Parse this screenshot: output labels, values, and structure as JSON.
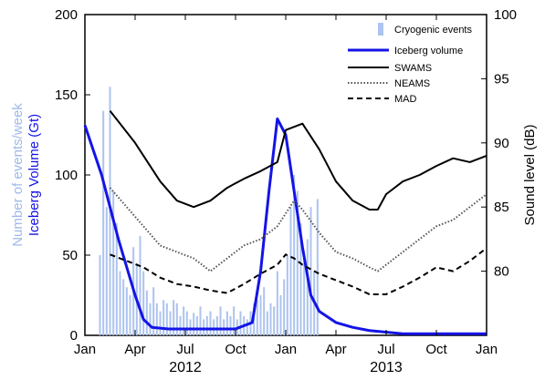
{
  "chart_data": {
    "type": "bar+line",
    "x_tick_labels": [
      "Jan",
      "Apr",
      "Jul",
      "Oct",
      "Jan",
      "Apr",
      "Jul",
      "Oct",
      "Jan"
    ],
    "x_tick_months": [
      0,
      3,
      6,
      9,
      12,
      15,
      18,
      21,
      24
    ],
    "years": [
      {
        "label": "2012",
        "month": 6
      },
      {
        "label": "2013",
        "month": 18
      }
    ],
    "xlim": [
      0,
      24
    ],
    "left_axis": {
      "ylim": [
        0,
        200
      ],
      "ticks": [
        0,
        50,
        100,
        150,
        200
      ],
      "label_line1": "Number of events/week",
      "label_line2": "Iceberg Volume (Gt)",
      "label_line1_color": "#9fb9ea",
      "label_line2_color": "#1414e6"
    },
    "right_axis": {
      "ylim": [
        75,
        100
      ],
      "ticks": [
        80,
        85,
        90,
        95,
        100
      ],
      "label": "Sound level (dB)"
    },
    "series": [
      {
        "name": "Cryogenic events",
        "axis": "left",
        "kind": "bar",
        "color": "#adc4ef",
        "x": [
          0.9,
          1.1,
          1.3,
          1.5,
          1.7,
          1.9,
          2.1,
          2.3,
          2.5,
          2.7,
          2.9,
          3.1,
          3.3,
          3.5,
          3.7,
          3.9,
          4.1,
          4.3,
          4.5,
          4.7,
          4.9,
          5.1,
          5.3,
          5.5,
          5.7,
          5.9,
          6.1,
          6.3,
          6.5,
          6.7,
          6.9,
          7.1,
          7.3,
          7.5,
          7.7,
          7.9,
          8.1,
          8.3,
          8.5,
          8.7,
          8.9,
          9.1,
          9.3,
          9.5,
          9.7,
          9.9,
          10.1,
          10.3,
          10.5,
          10.7,
          10.9,
          11.1,
          11.3,
          11.5,
          11.7,
          11.9,
          12.1,
          12.3,
          12.5,
          12.7,
          12.9,
          13.1,
          13.3,
          13.5,
          13.7,
          13.9
        ],
        "values": [
          50,
          140,
          80,
          155,
          90,
          70,
          40,
          35,
          30,
          25,
          55,
          45,
          62,
          40,
          28,
          20,
          30,
          20,
          15,
          22,
          20,
          15,
          22,
          20,
          12,
          18,
          15,
          10,
          14,
          12,
          18,
          10,
          12,
          15,
          10,
          12,
          18,
          10,
          15,
          12,
          18,
          10,
          15,
          12,
          10,
          15,
          20,
          22,
          25,
          30,
          15,
          20,
          18,
          40,
          25,
          35,
          50,
          80,
          100,
          90,
          70,
          50,
          60,
          80,
          40,
          85
        ]
      },
      {
        "name": "Iceberg volume",
        "axis": "left",
        "kind": "line",
        "color": "#1414e6",
        "dash": "solid",
        "x": [
          0,
          1,
          2,
          3,
          3.5,
          4,
          5,
          6,
          7,
          8,
          9,
          10,
          10.5,
          11,
          11.5,
          12,
          13,
          13.5,
          14,
          15,
          16,
          17,
          18,
          19,
          20,
          21,
          22,
          23,
          24
        ],
        "values": [
          131,
          100,
          60,
          25,
          10,
          5,
          4,
          4,
          4,
          4,
          4,
          8,
          40,
          90,
          135,
          125,
          55,
          25,
          15,
          8,
          5,
          3,
          2,
          1,
          1,
          1,
          1,
          1,
          1
        ]
      },
      {
        "name": "SWAMS",
        "axis": "right",
        "kind": "line",
        "color": "#000000",
        "dash": "solid",
        "x": [
          1.5,
          3,
          4.5,
          5.5,
          6.5,
          7.5,
          8.5,
          9.5,
          10.5,
          11.5,
          12,
          13,
          14,
          15,
          16,
          17,
          17.5,
          18,
          19,
          20,
          21,
          22,
          23,
          24
        ],
        "values": [
          92.5,
          90,
          87,
          85.5,
          85,
          85.5,
          86.5,
          87.2,
          87.8,
          88.5,
          91,
          91.5,
          89.5,
          87,
          85.5,
          84.8,
          84.8,
          86,
          87,
          87.5,
          88.2,
          88.8,
          88.5,
          89
        ]
      },
      {
        "name": "NEAMS",
        "axis": "right",
        "kind": "line",
        "color": "#555555",
        "dash": "dotted",
        "x": [
          1.5,
          2.5,
          3.5,
          4.5,
          5.5,
          6.5,
          7.5,
          8.5,
          9.5,
          10.5,
          11.5,
          12,
          12.5,
          13,
          14,
          15,
          16,
          17,
          17.5,
          18,
          19,
          20,
          21,
          22,
          23,
          24
        ],
        "values": [
          86.5,
          85,
          83.5,
          82,
          81.5,
          81,
          80,
          81,
          82,
          82.5,
          83.5,
          84.5,
          85.5,
          84.8,
          83,
          81.5,
          81,
          80.3,
          80,
          80.5,
          81.5,
          82.5,
          83.5,
          84,
          85,
          86
        ]
      },
      {
        "name": "MAD",
        "axis": "right",
        "kind": "line",
        "color": "#000000",
        "dash": "dashed",
        "x": [
          1.5,
          2.5,
          3.5,
          4.5,
          5.5,
          6.5,
          7.5,
          8.5,
          9.5,
          10.5,
          11.5,
          12,
          12.5,
          13,
          14,
          15,
          16,
          17,
          18,
          19,
          20,
          21,
          22,
          23,
          24
        ],
        "values": [
          81.3,
          80.8,
          80.3,
          79.5,
          79,
          78.8,
          78.5,
          78.3,
          79,
          79.8,
          80.5,
          81.3,
          81,
          80.5,
          79.8,
          79.3,
          78.8,
          78.2,
          78.2,
          78.8,
          79.5,
          80.3,
          80,
          80.8,
          81.8
        ]
      }
    ],
    "legend": {
      "position": "top-right",
      "entries": [
        "Cryogenic events",
        "Iceberg volume",
        "SWAMS",
        "NEAMS",
        "MAD"
      ]
    }
  }
}
